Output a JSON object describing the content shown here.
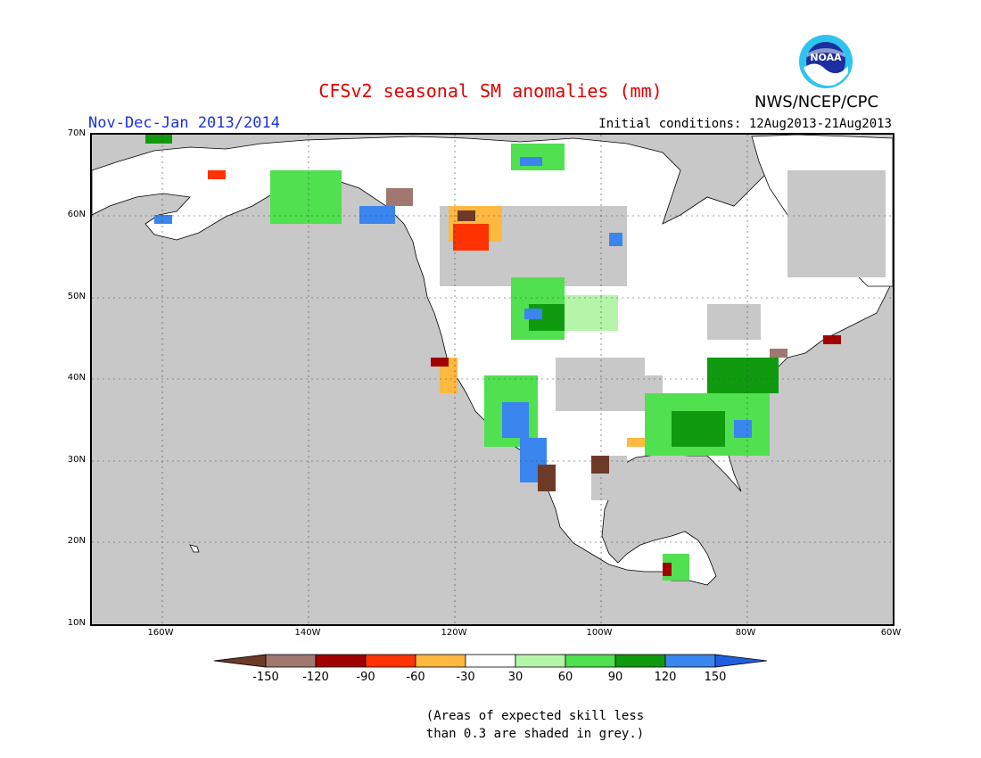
{
  "title": "CFSv2 seasonal SM anomalies (mm)",
  "agency": "NWS/NCEP/CPC",
  "logo_text": "NOAA",
  "period": "Nov-Dec-Jan 2013/2014",
  "initial_conditions": "Initial conditions: 12Aug2013-21Aug2013",
  "lat_ticks": [
    "70N",
    "60N",
    "50N",
    "40N",
    "30N",
    "20N",
    "10N"
  ],
  "lon_ticks": [
    "160W",
    "140W",
    "120W",
    "100W",
    "80W",
    "60W"
  ],
  "colorbar": {
    "labels": [
      "-150",
      "-120",
      "-90",
      "-60",
      "-30",
      "30",
      "60",
      "90",
      "120",
      "150"
    ],
    "colors": [
      "#6e3a28",
      "#a07870",
      "#a00000",
      "#ff3300",
      "#ffb840",
      "#ffffff",
      "#b4f5aa",
      "#50e050",
      "#109a10",
      "#3a85ee",
      "#1f5fdf"
    ]
  },
  "footnote_line1": "(Areas of expected skill less",
  "footnote_line2": "than 0.3 are shaded in grey.)",
  "map_colors": {
    "grey": "#c8c8c8",
    "white": "#ffffff",
    "light_green": "#b4f5aa",
    "green": "#50e050",
    "dark_green": "#109a10",
    "blue": "#3a85ee",
    "orange": "#ffb840",
    "red": "#ff3300",
    "dark_red": "#a00000",
    "brown": "#6e3a28",
    "light_brown": "#a07870"
  }
}
